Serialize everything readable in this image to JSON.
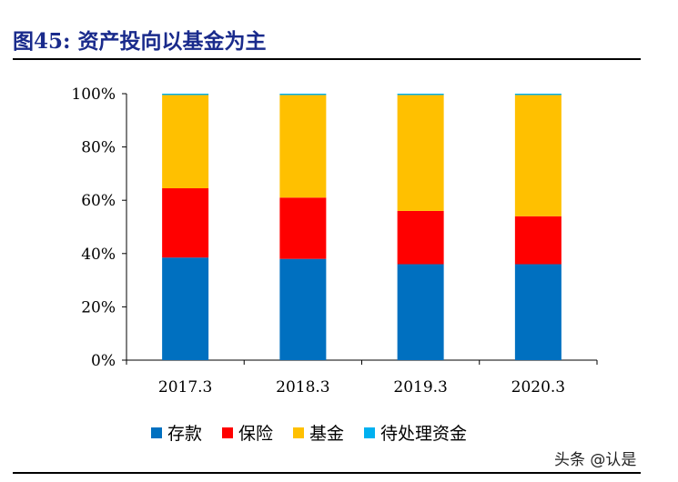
{
  "figure": {
    "title": "图45:  资产投向以基金为主"
  },
  "watermark": "头条 @认是",
  "chart_data": {
    "type": "bar",
    "stacked": true,
    "categories": [
      "2017.3",
      "2018.3",
      "2019.3",
      "2020.3"
    ],
    "series": [
      {
        "name": "存款",
        "color": "#0070C0",
        "values": [
          38.5,
          38.0,
          36.0,
          36.0
        ]
      },
      {
        "name": "保险",
        "color": "#FF0000",
        "values": [
          26.0,
          23.0,
          20.0,
          18.0
        ]
      },
      {
        "name": "基金",
        "color": "#FFC000",
        "values": [
          35.0,
          38.5,
          43.5,
          45.5
        ]
      },
      {
        "name": "待处理资金",
        "color": "#00B0F0",
        "values": [
          0.5,
          0.5,
          0.5,
          0.5
        ]
      }
    ],
    "yticks": [
      "0%",
      "20%",
      "40%",
      "60%",
      "80%",
      "100%"
    ],
    "ylim": [
      0,
      100
    ],
    "legend_position": "bottom",
    "grid": false,
    "title": "",
    "xlabel": "",
    "ylabel": ""
  }
}
